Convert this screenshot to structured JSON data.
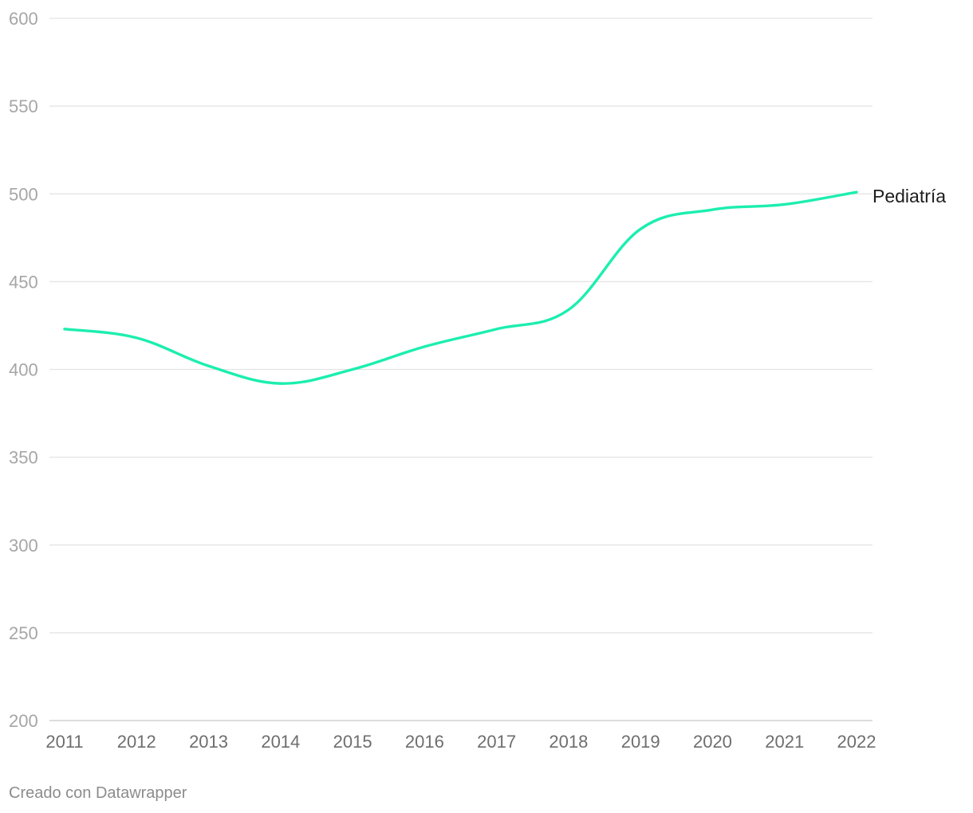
{
  "chart_data": {
    "type": "line",
    "x": [
      "2011",
      "2012",
      "2013",
      "2014",
      "2015",
      "2016",
      "2017",
      "2018",
      "2019",
      "2020",
      "2021",
      "2022"
    ],
    "series": [
      {
        "name": "Pediatría",
        "values": [
          423,
          418,
          402,
          392,
          400,
          413,
          423,
          434,
          480,
          491,
          494,
          501
        ],
        "color": "#1ceeaf"
      }
    ],
    "ylim": [
      200,
      600
    ],
    "yticks": [
      "600",
      "550",
      "500",
      "450",
      "400",
      "350",
      "300",
      "250",
      "200"
    ],
    "grid": true,
    "title": "",
    "xlabel": "",
    "ylabel": ""
  },
  "footer": "Creado con Datawrapper"
}
